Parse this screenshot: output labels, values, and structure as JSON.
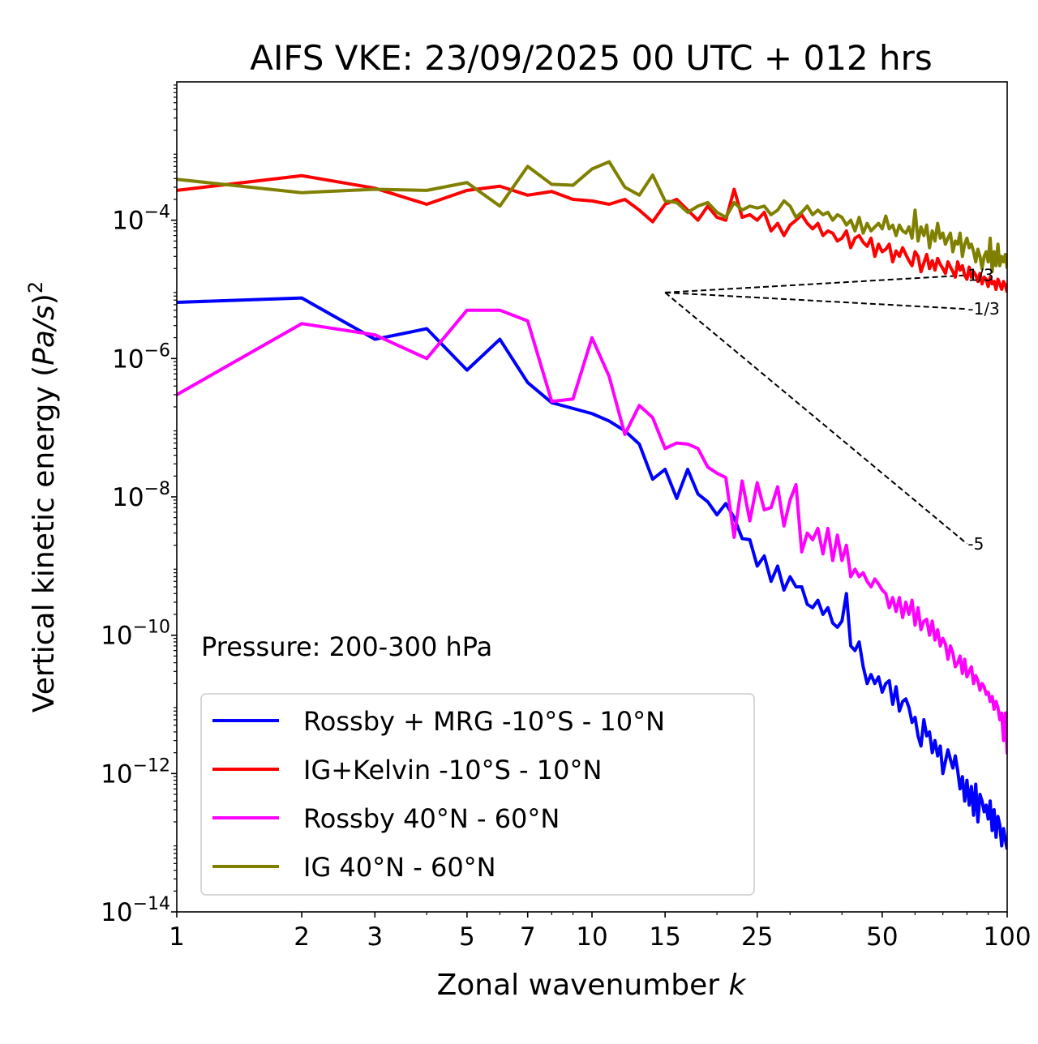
{
  "chart_data": {
    "type": "line",
    "title": "AIFS VKE: 23/09/2025 00 UTC + 012 hrs",
    "xlabel": "Zonal wavenumber",
    "xlabel_var": "k",
    "ylabel_main": "Vertical kinetic energy (",
    "ylabel_var": "Pa/s",
    "ylabel_close": ")",
    "ylabel_exp": "2",
    "xscale": "log",
    "yscale": "log",
    "xlim": [
      1,
      100
    ],
    "ylim": [
      1e-14,
      0.01
    ],
    "xticks": [
      {
        "value": 1,
        "label": "1"
      },
      {
        "value": 2,
        "label": "2"
      },
      {
        "value": 3,
        "label": "3"
      },
      {
        "value": 5,
        "label": "5"
      },
      {
        "value": 7,
        "label": "7"
      },
      {
        "value": 10,
        "label": "10"
      },
      {
        "value": 15,
        "label": "15"
      },
      {
        "value": 25,
        "label": "25"
      },
      {
        "value": 50,
        "label": "50"
      },
      {
        "value": 100,
        "label": "100"
      }
    ],
    "yticks": [
      {
        "value": 0.0001,
        "base": "10",
        "exp": "−4"
      },
      {
        "value": 1e-06,
        "base": "10",
        "exp": "−6"
      },
      {
        "value": 1e-08,
        "base": "10",
        "exp": "−8"
      },
      {
        "value": 1e-10,
        "base": "10",
        "exp": "−10"
      },
      {
        "value": 1e-12,
        "base": "10",
        "exp": "−12"
      },
      {
        "value": 1e-14,
        "base": "10",
        "exp": "−14"
      }
    ],
    "annotation": "Pressure: 200-300 hPa",
    "legend_position": "lower-left",
    "series": [
      {
        "name": "Rossby + MRG -10°S - 10°N",
        "color": "#0000ff",
        "x": [
          1,
          2,
          3,
          4,
          5,
          6,
          7,
          8,
          9,
          10,
          11,
          12,
          13,
          14,
          15,
          16,
          17,
          18,
          19,
          20,
          21,
          22,
          23,
          24,
          25,
          26,
          27,
          28,
          29,
          30,
          31,
          32,
          33,
          34,
          35,
          36,
          37,
          38,
          39,
          40,
          41,
          42,
          43,
          44,
          45,
          46,
          47,
          48,
          49,
          50,
          51,
          52,
          53,
          54,
          55,
          56,
          57,
          58,
          59,
          60,
          61,
          62,
          63,
          64,
          65,
          66,
          67,
          68,
          69,
          70,
          71,
          72,
          73,
          74,
          75,
          76,
          77,
          78,
          79,
          80,
          81,
          82,
          83,
          84,
          85,
          86,
          87,
          88,
          89,
          90,
          91,
          92,
          93,
          94,
          95,
          96,
          97,
          98,
          99,
          100
        ],
        "y": [
          6.5e-06,
          7.5e-06,
          1.9e-06,
          2.7e-06,
          6.8e-07,
          1.9e-06,
          4.5e-07,
          2.3e-07,
          1.9e-07,
          1.6e-07,
          1.25e-07,
          9e-08,
          5.8e-08,
          1.8e-08,
          2.5e-08,
          9.5e-09,
          2.5e-08,
          1.1e-08,
          8.5e-09,
          5.5e-09,
          8e-09,
          5e-09,
          2.5e-09,
          2.4e-09,
          1e-09,
          1.4e-09,
          6e-10,
          1e-09,
          4.5e-10,
          7e-10,
          5e-10,
          5e-10,
          2.8e-10,
          2.5e-10,
          3.2e-10,
          2e-10,
          2.5e-10,
          1.5e-10,
          1.3e-10,
          1.6e-10,
          4e-10,
          7e-11,
          6e-11,
          8e-11,
          3.5e-11,
          2e-11,
          2.7e-11,
          2e-11,
          2.5e-11,
          1.5e-11,
          2e-11,
          2.2e-11,
          1e-11,
          1.8e-11,
          8e-12,
          1.1e-11,
          1.2e-11,
          9e-12,
          5.5e-12,
          6.5e-12,
          3.5e-12,
          2.5e-12,
          6e-12,
          3.5e-12,
          4e-12,
          2e-12,
          3e-12,
          1.8e-12,
          2.5e-12,
          1e-12,
          1.5e-12,
          2.2e-12,
          1.6e-12,
          1.2e-12,
          1.8e-12,
          1.1e-12,
          6e-13,
          9e-13,
          4e-13,
          8e-13,
          3.5e-13,
          6.5e-13,
          2.5e-13,
          7e-13,
          2e-13,
          5e-13,
          4e-13,
          2.8e-13,
          3.5e-13,
          2.2e-13,
          4e-13,
          1.5e-13,
          3e-13,
          1.2e-13,
          2.4e-13,
          1.8e-13,
          9e-14,
          1.6e-13,
          1.1e-13,
          8e-14
        ]
      },
      {
        "name": "IG+Kelvin -10°S - 10°N",
        "color": "#ff0000",
        "x": [
          1,
          2,
          3,
          4,
          5,
          6,
          7,
          8,
          9,
          10,
          11,
          12,
          13,
          14,
          15,
          16,
          17,
          18,
          19,
          20,
          21,
          22,
          23,
          24,
          25,
          26,
          27,
          28,
          29,
          30,
          31,
          32,
          33,
          34,
          35,
          36,
          37,
          38,
          39,
          40,
          41,
          42,
          43,
          44,
          45,
          46,
          47,
          48,
          49,
          50,
          51,
          52,
          53,
          54,
          55,
          56,
          57,
          58,
          59,
          60,
          61,
          62,
          63,
          64,
          65,
          66,
          67,
          68,
          69,
          70,
          71,
          72,
          73,
          74,
          75,
          76,
          77,
          78,
          79,
          80,
          81,
          82,
          83,
          84,
          85,
          86,
          87,
          88,
          89,
          90,
          91,
          92,
          93,
          94,
          95,
          96,
          97,
          98,
          99,
          100
        ],
        "y": [
          0.00027,
          0.00044,
          0.00029,
          0.00017,
          0.00027,
          0.00031,
          0.00023,
          0.00026,
          0.0002,
          0.00019,
          0.00017,
          0.0002,
          0.00014,
          9.5e-05,
          0.00017,
          0.0002,
          0.00014,
          0.0001,
          0.00016,
          0.00011,
          0.0001,
          0.00028,
          0.00011,
          0.00012,
          0.0001,
          0.00013,
          7e-05,
          9e-05,
          6e-05,
          8.5e-05,
          0.0001,
          0.00012,
          9e-05,
          7.5e-05,
          9e-05,
          6e-05,
          7e-05,
          6.5e-05,
          5e-05,
          5.5e-05,
          7e-05,
          4e-05,
          5.5e-05,
          6e-05,
          4.8e-05,
          4.2e-05,
          5.5e-05,
          3e-05,
          4.5e-05,
          3.5e-05,
          3.8e-05,
          4.5e-05,
          2.5e-05,
          3.6e-05,
          3e-05,
          4e-05,
          3.2e-05,
          2.6e-05,
          2.2e-05,
          3.5e-05,
          3e-05,
          1.8e-05,
          2.4e-05,
          3.2e-05,
          2e-05,
          2.6e-05,
          1.9e-05,
          2.8e-05,
          2.3e-05,
          2e-05,
          1.7e-05,
          2.5e-05,
          2.1e-05,
          1.8e-05,
          1.5e-05,
          2.5e-05,
          1.9e-05,
          2.2e-05,
          1.6e-05,
          1.4e-05,
          2.1e-05,
          1.5e-05,
          1.8e-05,
          1.6e-05,
          1.3e-05,
          1.7e-05,
          1.2e-05,
          1.5e-05,
          1.4e-05,
          1.1e-05,
          1.5e-05,
          1.2e-05,
          1.3e-05,
          1e-05,
          1.4e-05,
          1.2e-05,
          1e-05,
          1.3e-05,
          1.15e-05,
          9e-06
        ]
      },
      {
        "name": "Rossby 40°N - 60°N",
        "color": "#ff00ff",
        "x": [
          1,
          2,
          3,
          4,
          5,
          6,
          7,
          8,
          9,
          10,
          11,
          12,
          13,
          14,
          15,
          16,
          17,
          18,
          19,
          20,
          21,
          22,
          23,
          24,
          25,
          26,
          27,
          28,
          29,
          30,
          31,
          32,
          33,
          34,
          35,
          36,
          37,
          38,
          39,
          40,
          41,
          42,
          43,
          44,
          45,
          46,
          47,
          48,
          49,
          50,
          51,
          52,
          53,
          54,
          55,
          56,
          57,
          58,
          59,
          60,
          61,
          62,
          63,
          64,
          65,
          66,
          67,
          68,
          69,
          70,
          71,
          72,
          73,
          74,
          75,
          76,
          77,
          78,
          79,
          80,
          81,
          82,
          83,
          84,
          85,
          86,
          87,
          88,
          89,
          90,
          91,
          92,
          93,
          94,
          95,
          96,
          97,
          98,
          99,
          100
        ],
        "y": [
          3e-07,
          3.2e-06,
          2.2e-06,
          1e-06,
          5e-06,
          5e-06,
          3.5e-06,
          2.4e-07,
          2.6e-07,
          2e-06,
          5.5e-07,
          8e-08,
          2.1e-07,
          1.4e-07,
          5e-08,
          6e-08,
          5.8e-08,
          5e-08,
          2.7e-08,
          2.2e-08,
          1.9e-08,
          2.6e-09,
          1.7e-08,
          4.5e-09,
          1.6e-08,
          6.5e-09,
          7e-09,
          1.4e-08,
          3.8e-09,
          9e-09,
          1.5e-08,
          1.6e-09,
          3e-09,
          2.4e-09,
          3.5e-09,
          1.5e-09,
          3.5e-09,
          1.2e-09,
          2.8e-09,
          1.2e-09,
          2e-09,
          7e-10,
          9e-10,
          7e-10,
          8e-10,
          6e-10,
          5e-10,
          6.5e-10,
          5.5e-10,
          4.5e-10,
          4e-10,
          2.5e-10,
          3.5e-10,
          2.2e-10,
          3.5e-10,
          1.8e-10,
          3e-10,
          2e-10,
          3.2e-10,
          1.4e-10,
          2.5e-10,
          1.2e-10,
          1.6e-10,
          1.7e-10,
          1e-10,
          1.6e-10,
          8.5e-11,
          1.2e-10,
          7e-11,
          9e-11,
          7.5e-11,
          4.5e-11,
          7e-11,
          5.5e-11,
          3.5e-11,
          4e-11,
          5e-11,
          2.8e-11,
          4.5e-11,
          2.5e-11,
          3e-11,
          3.5e-11,
          2e-11,
          2.6e-11,
          2.2e-11,
          1.6e-11,
          2e-11,
          1.8e-11,
          1.4e-11,
          1.5e-11,
          1.1e-11,
          1.3e-11,
          8.5e-12,
          1.1e-11,
          9e-12,
          6e-12,
          7.5e-12,
          3e-12,
          7.5e-12,
          1.9e-12
        ]
      },
      {
        "name": "IG 40°N - 60°N",
        "color": "#808000",
        "x": [
          1,
          2,
          3,
          4,
          5,
          6,
          7,
          8,
          9,
          10,
          11,
          12,
          13,
          14,
          15,
          16,
          17,
          18,
          19,
          20,
          21,
          22,
          23,
          24,
          25,
          26,
          27,
          28,
          29,
          30,
          31,
          32,
          33,
          34,
          35,
          36,
          37,
          38,
          39,
          40,
          41,
          42,
          43,
          44,
          45,
          46,
          47,
          48,
          49,
          50,
          51,
          52,
          53,
          54,
          55,
          56,
          57,
          58,
          59,
          60,
          61,
          62,
          63,
          64,
          65,
          66,
          67,
          68,
          69,
          70,
          71,
          72,
          73,
          74,
          75,
          76,
          77,
          78,
          79,
          80,
          81,
          82,
          83,
          84,
          85,
          86,
          87,
          88,
          89,
          90,
          91,
          92,
          93,
          94,
          95,
          96,
          97,
          98,
          99,
          100
        ],
        "y": [
          0.00039,
          0.00025,
          0.00028,
          0.00027,
          0.00035,
          0.00016,
          0.0006,
          0.00033,
          0.00032,
          0.00055,
          0.0007,
          0.0003,
          0.00023,
          0.00045,
          0.00019,
          0.00018,
          0.00013,
          0.00016,
          0.00018,
          0.00013,
          0.00011,
          0.00018,
          0.00014,
          0.00016,
          0.00015,
          0.00016,
          0.00012,
          0.00014,
          0.00019,
          0.00016,
          0.00011,
          0.00013,
          0.00016,
          0.00012,
          0.00014,
          0.00012,
          0.00013,
          0.0001,
          0.00012,
          0.00011,
          8.5e-05,
          0.0001,
          7e-05,
          0.00011,
          6.5e-05,
          9e-05,
          7e-05,
          8e-05,
          9e-05,
          7.5e-05,
          0.000115,
          7.5e-05,
          8.5e-05,
          6e-05,
          8.5e-05,
          7e-05,
          6.5e-05,
          8e-05,
          5.5e-05,
          0.00014,
          5e-05,
          8e-05,
          6e-05,
          8.5e-05,
          4e-05,
          7e-05,
          5e-05,
          9e-05,
          5.5e-05,
          6.5e-05,
          4.5e-05,
          5.5e-05,
          6.5e-05,
          3.5e-05,
          5e-05,
          4.5e-05,
          6.5e-05,
          3e-05,
          4.5e-05,
          5.5e-05,
          4e-05,
          4.5e-05,
          3.5e-05,
          2.5e-05,
          3.8e-05,
          3e-05,
          2e-05,
          3e-05,
          3.5e-05,
          2.5e-05,
          5.5e-05,
          1.8e-05,
          3.5e-05,
          2.2e-05,
          4.5e-05,
          2.2e-05,
          3e-05,
          2.5e-05,
          3.2e-05,
          2e-05
        ]
      }
    ],
    "reference_slopes": [
      {
        "label": "1/3",
        "from": [
          15,
          9e-06
        ],
        "to": [
          80,
          1.6e-05
        ]
      },
      {
        "label": "-1/3",
        "from": [
          15,
          9e-06
        ],
        "to": [
          80,
          5.2e-06
        ]
      },
      {
        "label": "-5",
        "from": [
          15,
          9e-06
        ],
        "to": [
          80,
          2.1e-09
        ]
      }
    ]
  }
}
